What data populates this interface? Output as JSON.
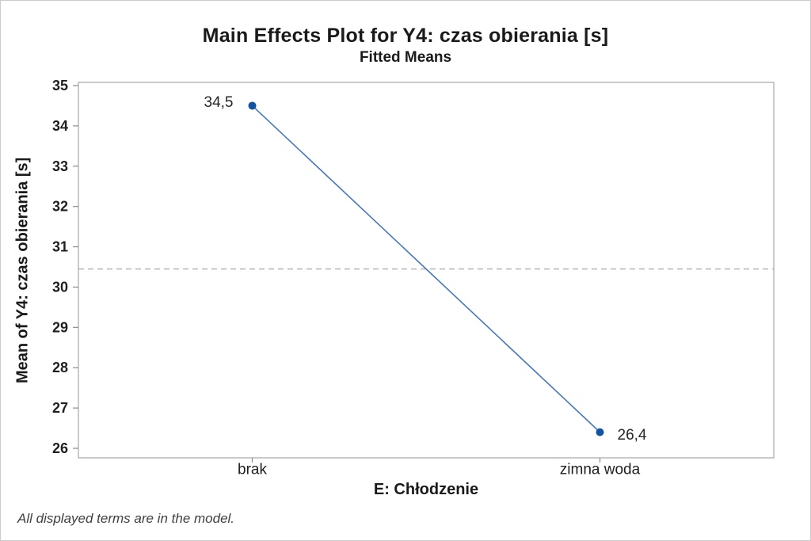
{
  "window": {
    "background": "#ffffff",
    "border_color": "#cccccc"
  },
  "chart_data": {
    "type": "line",
    "title": "Main Effects Plot for Y4: czas obierania [s]",
    "subtitle": "Fitted Means",
    "xlabel": "E: Chłodzenie",
    "ylabel": "Mean of Y4: czas obierania [s]",
    "categories": [
      "brak",
      "zimna woda"
    ],
    "series": [
      {
        "name": "Fitted Means",
        "values": [
          34.5,
          26.4
        ]
      }
    ],
    "point_labels": [
      "34,5",
      "26,4"
    ],
    "reference_line_value": 30.45,
    "ylim": [
      26,
      35
    ],
    "yticks": [
      26,
      27,
      28,
      29,
      30,
      31,
      32,
      33,
      34,
      35
    ],
    "grid": false,
    "legend": "none",
    "colors": {
      "marker": "#1253a4",
      "line": "#4478bd",
      "reference_line": "#b0b0b0",
      "axis": "#a6a6a6",
      "tick_mark": "#8c8c8c"
    }
  },
  "footer": {
    "note": "All displayed terms are in the model."
  }
}
